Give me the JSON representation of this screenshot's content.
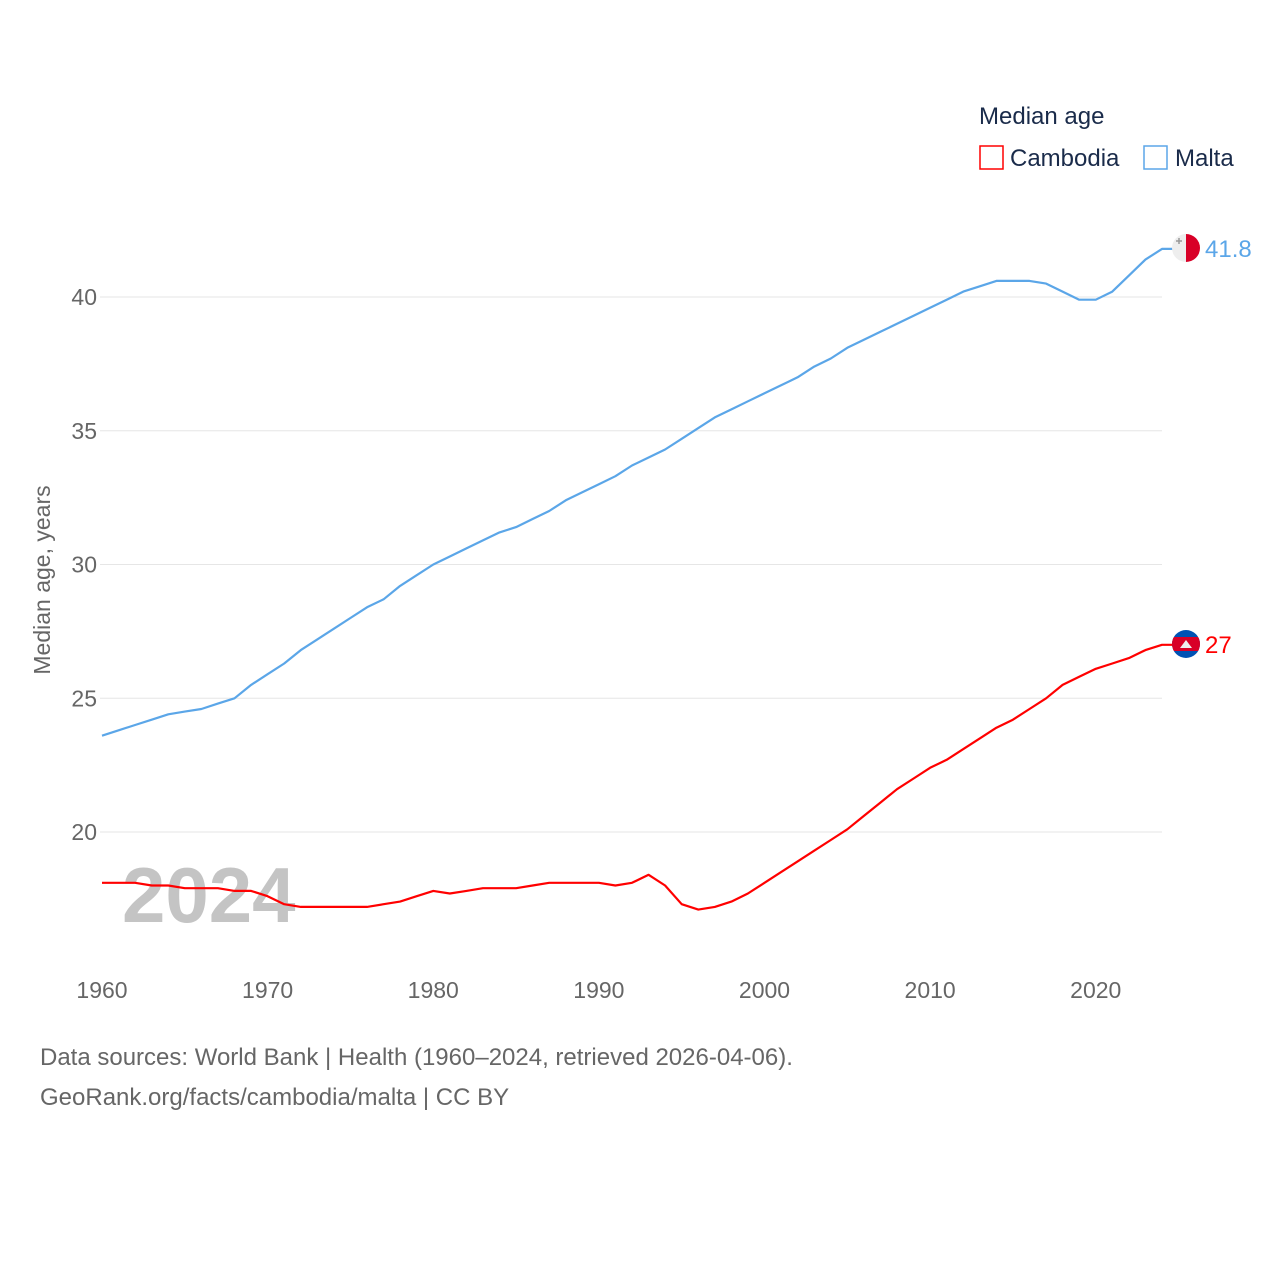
{
  "chart_data": {
    "type": "line",
    "title": "",
    "xlabel": "",
    "ylabel": "Median age, years",
    "xlim": [
      1960,
      2024
    ],
    "ylim": [
      16,
      42
    ],
    "x_ticks": [
      "1960",
      "1970",
      "1980",
      "1990",
      "2000",
      "2010",
      "2020"
    ],
    "y_ticks": [
      "20",
      "25",
      "30",
      "35",
      "40"
    ],
    "grid": true,
    "legend": {
      "title": "Median age",
      "placement": "top-right",
      "entries": [
        "Cambodia",
        "Malta"
      ]
    },
    "watermark_year": "2024",
    "x": [
      1960,
      1961,
      1962,
      1963,
      1964,
      1965,
      1966,
      1967,
      1968,
      1969,
      1970,
      1971,
      1972,
      1973,
      1974,
      1975,
      1976,
      1977,
      1978,
      1979,
      1980,
      1981,
      1982,
      1983,
      1984,
      1985,
      1986,
      1987,
      1988,
      1989,
      1990,
      1991,
      1992,
      1993,
      1994,
      1995,
      1996,
      1997,
      1998,
      1999,
      2000,
      2001,
      2002,
      2003,
      2004,
      2005,
      2006,
      2007,
      2008,
      2009,
      2010,
      2011,
      2012,
      2013,
      2014,
      2015,
      2016,
      2017,
      2018,
      2019,
      2020,
      2021,
      2022,
      2023,
      2024
    ],
    "series": [
      {
        "name": "Cambodia",
        "color": "#ff0000",
        "end_label": "27",
        "values": [
          18.1,
          18.1,
          18.1,
          18.0,
          18.0,
          17.9,
          17.9,
          17.9,
          17.8,
          17.8,
          17.6,
          17.3,
          17.2,
          17.2,
          17.2,
          17.2,
          17.2,
          17.3,
          17.4,
          17.6,
          17.8,
          17.7,
          17.8,
          17.9,
          17.9,
          17.9,
          18.0,
          18.1,
          18.1,
          18.1,
          18.1,
          18.0,
          18.1,
          18.4,
          18.0,
          17.3,
          17.1,
          17.2,
          17.4,
          17.7,
          18.1,
          18.5,
          18.9,
          19.3,
          19.7,
          20.1,
          20.6,
          21.1,
          21.6,
          22.0,
          22.4,
          22.7,
          23.1,
          23.5,
          23.9,
          24.2,
          24.6,
          25.0,
          25.5,
          25.8,
          26.1,
          26.3,
          26.5,
          26.8,
          27.0
        ]
      },
      {
        "name": "Malta",
        "color": "#5ba6e8",
        "end_label": "41.8",
        "values": [
          23.6,
          23.8,
          24.0,
          24.2,
          24.4,
          24.5,
          24.6,
          24.8,
          25.0,
          25.5,
          25.9,
          26.3,
          26.8,
          27.2,
          27.6,
          28.0,
          28.4,
          28.7,
          29.2,
          29.6,
          30.0,
          30.3,
          30.6,
          30.9,
          31.2,
          31.4,
          31.7,
          32.0,
          32.4,
          32.7,
          33.0,
          33.3,
          33.7,
          34.0,
          34.3,
          34.7,
          35.1,
          35.5,
          35.8,
          36.1,
          36.4,
          36.7,
          37.0,
          37.4,
          37.7,
          38.1,
          38.4,
          38.7,
          39.0,
          39.3,
          39.6,
          39.9,
          40.2,
          40.4,
          40.6,
          40.6,
          40.6,
          40.5,
          40.2,
          39.9,
          39.9,
          40.2,
          40.8,
          41.4,
          41.8
        ]
      }
    ]
  },
  "footer": {
    "line1": "Data sources: World Bank | Health (1960–2024, retrieved 2026-04-06).",
    "line2": "GeoRank.org/facts/cambodia/malta | CC BY"
  }
}
